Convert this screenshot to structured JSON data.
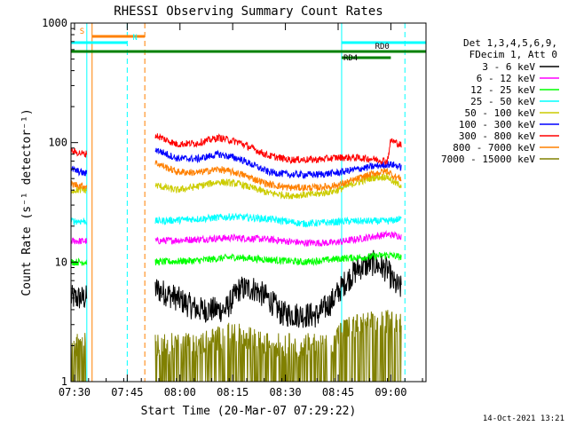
{
  "chart_data": {
    "type": "line",
    "title": "RHESSI Observing Summary Count Rates",
    "xlabel": "Start Time (20-Mar-07 07:29:22)",
    "ylabel": "Count Rate (s⁻¹ detector⁻¹)",
    "y_scale": "log",
    "ylim": [
      1,
      1000
    ],
    "xlim_minutes_after_0729": [
      0,
      101
    ],
    "x_ticks": [
      {
        "minute": 1,
        "label": "07:30"
      },
      {
        "minute": 16,
        "label": "07:45"
      },
      {
        "minute": 31,
        "label": "08:00"
      },
      {
        "minute": 46,
        "label": "08:15"
      },
      {
        "minute": 61,
        "label": "08:30"
      },
      {
        "minute": 76,
        "label": "08:45"
      },
      {
        "minute": 91,
        "label": "09:00"
      }
    ],
    "y_ticks": [
      {
        "value": 1,
        "label": "1"
      },
      {
        "value": 10,
        "label": "10"
      },
      {
        "value": 100,
        "label": "100"
      },
      {
        "value": 1000,
        "label": "1000"
      }
    ],
    "legend_header": [
      "Det 1,3,4,5,6,9,",
      "FDecim 1, Att 0"
    ],
    "series": [
      {
        "name": "3 - 6 keV",
        "color": "#000000",
        "points": [
          [
            0,
            5
          ],
          [
            4,
            5
          ],
          [
            24,
            6
          ],
          [
            30,
            5
          ],
          [
            36,
            4
          ],
          [
            44,
            4
          ],
          [
            48,
            6
          ],
          [
            52,
            6
          ],
          [
            56,
            5
          ],
          [
            60,
            3.7
          ],
          [
            66,
            3.6
          ],
          [
            70,
            3.6
          ],
          [
            74,
            4.6
          ],
          [
            78,
            6.8
          ],
          [
            82,
            9
          ],
          [
            86,
            9.8
          ],
          [
            90,
            8.6
          ],
          [
            92,
            6.5
          ],
          [
            94,
            6
          ]
        ]
      },
      {
        "name": "6 - 12 keV",
        "color": "#ff00ff",
        "points": [
          [
            0,
            15
          ],
          [
            4,
            15
          ],
          [
            24,
            15
          ],
          [
            36,
            15.5
          ],
          [
            46,
            16
          ],
          [
            56,
            15.5
          ],
          [
            66,
            14.5
          ],
          [
            74,
            14.5
          ],
          [
            78,
            15
          ],
          [
            84,
            16
          ],
          [
            90,
            17
          ],
          [
            94,
            16.5
          ]
        ]
      },
      {
        "name": "12 - 25 keV",
        "color": "#00ff00",
        "points": [
          [
            0,
            10
          ],
          [
            4,
            10
          ],
          [
            24,
            10
          ],
          [
            36,
            10.3
          ],
          [
            46,
            11
          ],
          [
            56,
            10.5
          ],
          [
            66,
            10
          ],
          [
            74,
            10.5
          ],
          [
            78,
            10.8
          ],
          [
            84,
            11
          ],
          [
            90,
            11.5
          ],
          [
            94,
            11
          ]
        ]
      },
      {
        "name": "25 - 50 keV",
        "color": "#00ffff",
        "points": [
          [
            0,
            22
          ],
          [
            4,
            22
          ],
          [
            24,
            22
          ],
          [
            36,
            23
          ],
          [
            46,
            24
          ],
          [
            56,
            23
          ],
          [
            66,
            21
          ],
          [
            74,
            21.5
          ],
          [
            78,
            22
          ],
          [
            84,
            22
          ],
          [
            90,
            22
          ],
          [
            94,
            23
          ]
        ]
      },
      {
        "name": "50 - 100 keV",
        "color": "#cccc00",
        "points": [
          [
            0,
            40
          ],
          [
            4,
            40
          ],
          [
            24,
            44
          ],
          [
            30,
            40
          ],
          [
            36,
            43
          ],
          [
            42,
            47
          ],
          [
            48,
            45
          ],
          [
            56,
            38
          ],
          [
            62,
            36
          ],
          [
            70,
            37
          ],
          [
            76,
            40
          ],
          [
            80,
            45
          ],
          [
            86,
            51
          ],
          [
            90,
            52
          ],
          [
            92,
            46
          ],
          [
            94,
            44
          ]
        ]
      },
      {
        "name": "100 - 300 keV",
        "color": "#0000ff",
        "points": [
          [
            0,
            60
          ],
          [
            4,
            55
          ],
          [
            24,
            88
          ],
          [
            30,
            74
          ],
          [
            36,
            73
          ],
          [
            42,
            80
          ],
          [
            48,
            73
          ],
          [
            56,
            57
          ],
          [
            62,
            54
          ],
          [
            70,
            54
          ],
          [
            76,
            56
          ],
          [
            80,
            59
          ],
          [
            86,
            63
          ],
          [
            90,
            66
          ],
          [
            92,
            65
          ],
          [
            94,
            62
          ]
        ]
      },
      {
        "name": "300 - 800 keV",
        "color": "#ff0000",
        "points": [
          [
            0,
            85
          ],
          [
            4,
            80
          ],
          [
            24,
            115
          ],
          [
            30,
            97
          ],
          [
            36,
            99
          ],
          [
            42,
            110
          ],
          [
            48,
            100
          ],
          [
            56,
            78
          ],
          [
            62,
            72
          ],
          [
            70,
            72
          ],
          [
            76,
            75
          ],
          [
            80,
            75
          ],
          [
            86,
            73
          ],
          [
            90,
            70
          ],
          [
            91,
            105
          ],
          [
            94,
            95
          ]
        ]
      },
      {
        "name": "800 - 7000 keV",
        "color": "#ff8000",
        "points": [
          [
            0,
            45
          ],
          [
            4,
            43
          ],
          [
            24,
            68
          ],
          [
            30,
            57
          ],
          [
            36,
            56
          ],
          [
            42,
            60
          ],
          [
            48,
            55
          ],
          [
            56,
            45
          ],
          [
            62,
            42
          ],
          [
            70,
            42
          ],
          [
            76,
            44
          ],
          [
            80,
            48
          ],
          [
            86,
            55
          ],
          [
            90,
            58
          ],
          [
            92,
            52
          ],
          [
            94,
            50
          ]
        ]
      },
      {
        "name": "7000 - 15000 keV",
        "color": "#808000",
        "points": [
          [
            0,
            1.6
          ],
          [
            4,
            1.6
          ],
          [
            24,
            1.6
          ],
          [
            36,
            1.6
          ],
          [
            46,
            2
          ],
          [
            56,
            1.6
          ],
          [
            66,
            1.6
          ],
          [
            74,
            1.6
          ],
          [
            78,
            2.2
          ],
          [
            84,
            2.4
          ],
          [
            90,
            2.5
          ],
          [
            94,
            2.4
          ]
        ]
      }
    ],
    "data_gaps_minutes": [
      [
        4.5,
        24
      ]
    ],
    "vertical_markers": [
      {
        "minute": 4.5,
        "color": "#00ffff",
        "style": "solid"
      },
      {
        "minute": 6,
        "color": "#ff8000",
        "style": "solid"
      },
      {
        "minute": 16,
        "color": "#00ffff",
        "style": "dashed"
      },
      {
        "minute": 21,
        "color": "#ff8000",
        "style": "dashed"
      },
      {
        "minute": 77,
        "color": "#00ffff",
        "style": "solid"
      },
      {
        "minute": 95,
        "color": "#00ffff",
        "style": "dashed"
      }
    ],
    "flag_bars": [
      {
        "label": "S",
        "color": "#ff8000",
        "start": 6,
        "end": 21,
        "level": 0
      },
      {
        "label": "N",
        "color": "#00ffff",
        "start": 0,
        "end": 16,
        "level": 1
      },
      {
        "label": "",
        "color": "#00ffff",
        "start": 77,
        "end": 101,
        "level": 1
      },
      {
        "label": "",
        "color": "#008000",
        "start": 0,
        "end": 101,
        "level": 2
      },
      {
        "label": "RD0",
        "color": "#008000",
        "start": 86,
        "end": 101,
        "level": 2
      },
      {
        "label": "RD4",
        "color": "#008000",
        "start": 77,
        "end": 91,
        "level": 3
      }
    ],
    "grid": false,
    "legend_placement": "right"
  },
  "footer": {
    "timestamp": "14-Oct-2021 13:21"
  }
}
